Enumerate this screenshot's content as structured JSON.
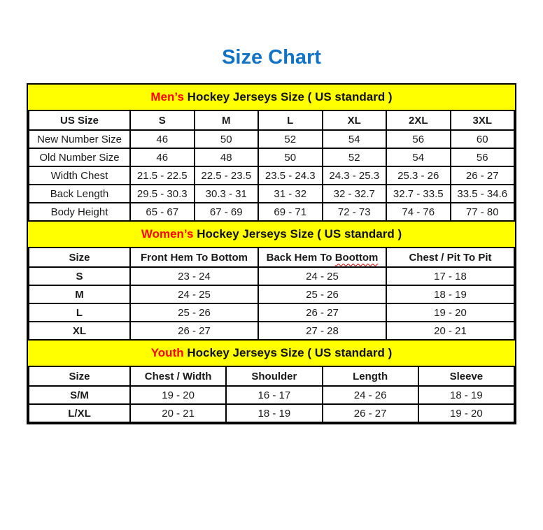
{
  "page": {
    "title": "Size Chart"
  },
  "colors": {
    "title_blue": "#1273c4",
    "band_yellow": "#ffff00",
    "highlight_red": "#ff0000",
    "border_black": "#000000"
  },
  "mens": {
    "band": {
      "highlight": "Men’s",
      "rest": " Hockey Jerseys Size ( US standard )"
    },
    "columns": [
      "US Size",
      "S",
      "M",
      "L",
      "XL",
      "2XL",
      "3XL"
    ],
    "rows": [
      {
        "label": "New Number Size",
        "values": [
          "46",
          "50",
          "52",
          "54",
          "56",
          "60"
        ]
      },
      {
        "label": "Old Number Size",
        "values": [
          "46",
          "48",
          "50",
          "52",
          "54",
          "56"
        ]
      },
      {
        "label": "Width Chest",
        "values": [
          "21.5 - 22.5",
          "22.5 - 23.5",
          "23.5 - 24.3",
          "24.3 - 25.3",
          "25.3 - 26",
          "26 - 27"
        ]
      },
      {
        "label": "Back Length",
        "values": [
          "29.5 - 30.3",
          "30.3 - 31",
          "31 - 32",
          "32 - 32.7",
          "32.7 - 33.5",
          "33.5 - 34.6"
        ]
      },
      {
        "label": "Body Height",
        "values": [
          "65 - 67",
          "67 - 69",
          "69 - 71",
          "72 - 73",
          "74 - 76",
          "77 - 80"
        ]
      }
    ]
  },
  "womens": {
    "band": {
      "highlight": "Women’s",
      "rest": " Hockey Jerseys Size ( US standard )"
    },
    "columns": [
      "Size",
      "Front Hem To Bottom",
      "Back Hem To Boottom",
      "Chest / Pit To Pit"
    ],
    "back_hem_column": {
      "prefix": "Back Hem To ",
      "underlined_word": "Boottom"
    },
    "rows": [
      {
        "label": "S",
        "values": [
          "23 - 24",
          "24 - 25",
          "17 - 18"
        ]
      },
      {
        "label": "M",
        "values": [
          "24 - 25",
          "25 - 26",
          "18 - 19"
        ]
      },
      {
        "label": "L",
        "values": [
          "25 - 26",
          "26 - 27",
          "19 - 20"
        ]
      },
      {
        "label": "XL",
        "values": [
          "26 - 27",
          "27 - 28",
          "20 - 21"
        ]
      }
    ]
  },
  "youth": {
    "band": {
      "highlight": "Youth",
      "rest": " Hockey Jerseys Size ( US standard )"
    },
    "columns": [
      "Size",
      "Chest / Width",
      "Shoulder",
      "Length",
      "Sleeve"
    ],
    "rows": [
      {
        "label": "S/M",
        "values": [
          "19 - 20",
          "16 - 17",
          "24 - 26",
          "18 - 19"
        ]
      },
      {
        "label": "L/XL",
        "values": [
          "20 - 21",
          "18 - 19",
          "26 - 27",
          "19 - 20"
        ]
      }
    ]
  }
}
